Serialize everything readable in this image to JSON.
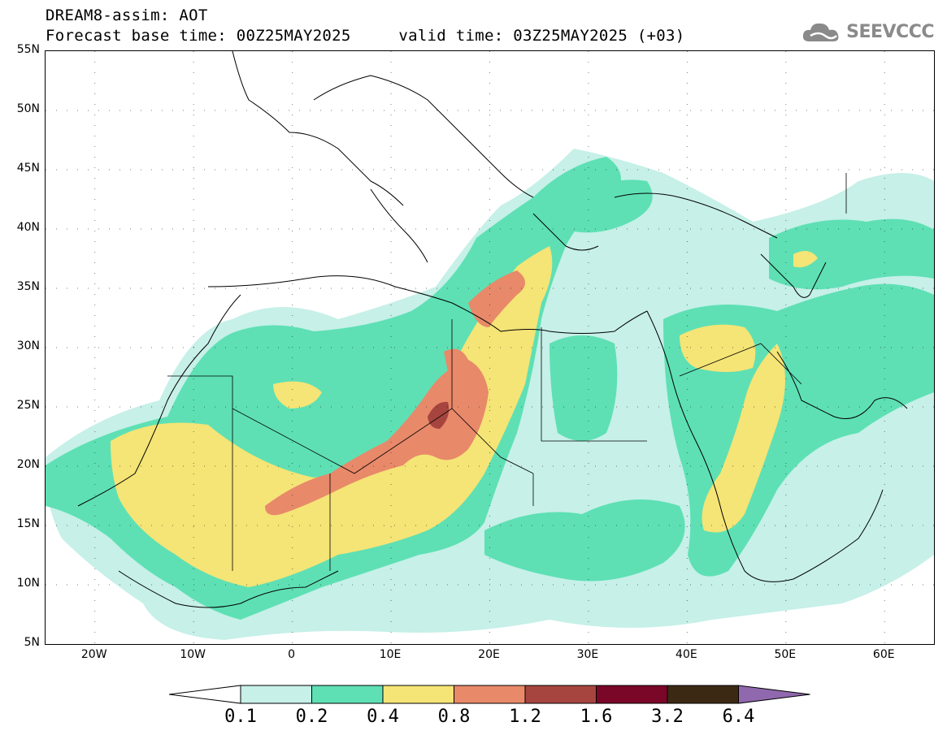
{
  "title": {
    "line1": "DREAM8-assim: AOT",
    "line2": "Forecast base time: 00Z25MAY2025     valid time: 03Z25MAY2025 (+03)"
  },
  "logo": {
    "text": "SEEVCCC",
    "icon": "cloud-icon"
  },
  "map": {
    "lon_range": [
      -25,
      65
    ],
    "lat_range": [
      5,
      55
    ],
    "lat_labels": [
      "55N",
      "50N",
      "45N",
      "40N",
      "35N",
      "30N",
      "25N",
      "20N",
      "15N",
      "10N",
      "5N"
    ],
    "lat_values": [
      55,
      50,
      45,
      40,
      35,
      30,
      25,
      20,
      15,
      10,
      5
    ],
    "lon_labels": [
      "20W",
      "10W",
      "0",
      "10E",
      "20E",
      "30E",
      "40E",
      "50E",
      "60E"
    ],
    "lon_values": [
      -20,
      -10,
      0,
      10,
      20,
      30,
      40,
      50,
      60
    ]
  },
  "colorbar": {
    "labels": [
      "0.1",
      "0.2",
      "0.4",
      "0.8",
      "1.2",
      "1.6",
      "3.2",
      "6.4"
    ],
    "colors": [
      "#ffffff",
      "#c6f0e8",
      "#5ee0b4",
      "#f5e476",
      "#e8896a",
      "#a6453f",
      "#7a0628",
      "#3c2914",
      "#9068ad"
    ]
  }
}
